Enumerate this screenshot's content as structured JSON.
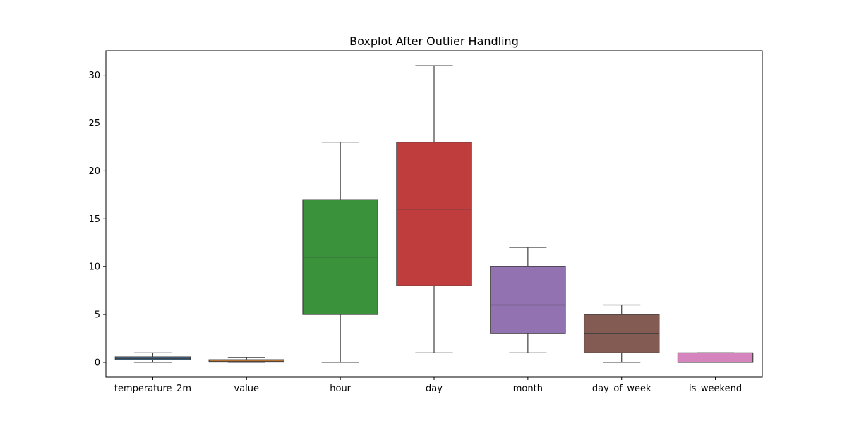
{
  "chart_data": {
    "type": "boxplot",
    "title": "Boxplot After Outlier Handling",
    "xlabel": "",
    "ylabel": "",
    "ylim": [
      -1.55,
      32.55
    ],
    "yticks": [
      0,
      5,
      10,
      15,
      20,
      25,
      30
    ],
    "grid": false,
    "categories": [
      "temperature_2m",
      "value",
      "hour",
      "day",
      "month",
      "day_of_week",
      "is_weekend"
    ],
    "boxes": [
      {
        "category": "temperature_2m",
        "whisker_low": 0.0,
        "q1": 0.28,
        "median": 0.42,
        "q3": 0.58,
        "whisker_high": 1.0,
        "color": "#3a6e9c"
      },
      {
        "category": "value",
        "whisker_low": 0.0,
        "q1": 0.03,
        "median": 0.12,
        "q3": 0.28,
        "whisker_high": 0.5,
        "color": "#e1812c"
      },
      {
        "category": "hour",
        "whisker_low": 0,
        "q1": 5,
        "median": 11,
        "q3": 17,
        "whisker_high": 23,
        "color": "#3a923a"
      },
      {
        "category": "day",
        "whisker_low": 1,
        "q1": 8,
        "median": 16,
        "q3": 23,
        "whisker_high": 31,
        "color": "#c03d3e"
      },
      {
        "category": "month",
        "whisker_low": 1,
        "q1": 3,
        "median": 6,
        "q3": 10,
        "whisker_high": 12,
        "color": "#9372b2"
      },
      {
        "category": "day_of_week",
        "whisker_low": 0,
        "q1": 1,
        "median": 3,
        "q3": 5,
        "whisker_high": 6,
        "color": "#845b53"
      },
      {
        "category": "is_weekend",
        "whisker_low": 0,
        "q1": 0,
        "median": 0,
        "q3": 1,
        "whisker_high": 1,
        "color": "#d684bd"
      }
    ]
  }
}
